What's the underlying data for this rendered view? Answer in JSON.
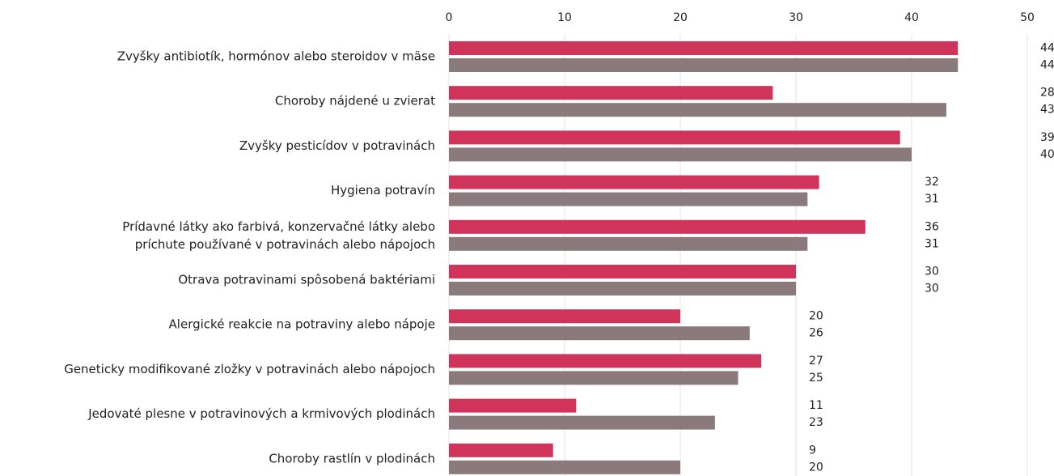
{
  "chart_data": {
    "type": "bar",
    "orientation": "horizontal",
    "categories": [
      "Zvyšky antibiotík, hormónov alebo steroidov v mäse",
      "Choroby nájdené u zvierat",
      "Zvyšky pesticídov v potravinách",
      "Hygiena potravín",
      "Prídavné látky ako farbivá, konzervačné látky alebo príchute používané v potravinách alebo nápojoch",
      "Otrava potravinami spôsobená baktériami",
      "Alergické reakcie na potraviny alebo nápoje",
      "Geneticky modifikované zložky v potravinách alebo nápojoch",
      "Jedovaté plesne v potravinových a krmivových plodinách",
      "Choroby rastlín v plodinách"
    ],
    "series": [
      {
        "color": "#d1345b",
        "values": [
          44,
          28,
          39,
          32,
          36,
          30,
          20,
          27,
          11,
          9
        ]
      },
      {
        "color": "#8a7a7b",
        "values": [
          44,
          43,
          40,
          31,
          31,
          30,
          26,
          25,
          23,
          20
        ]
      }
    ],
    "xlim": [
      0,
      50
    ],
    "xticks": [
      0,
      10,
      20,
      30,
      40,
      50
    ],
    "grid": true
  }
}
